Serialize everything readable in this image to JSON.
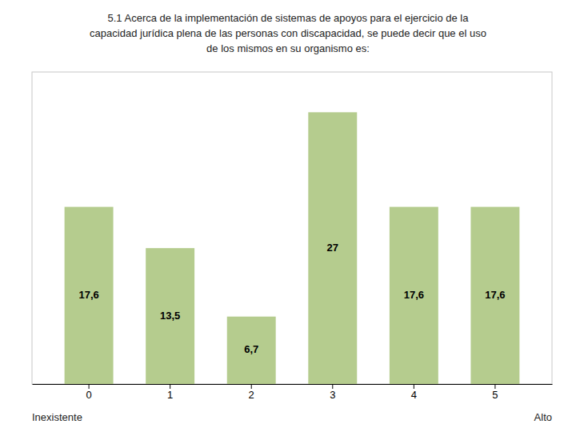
{
  "chart_data": {
    "type": "bar",
    "title": "5.1 Acerca de la implementación de sistemas de apoyos para el ejercicio de la\ncapacidad jurídica plena de las personas con discapacidad, se puede decir que el uso\nde los mismos en su organismo es:",
    "categories": [
      "0",
      "1",
      "2",
      "3",
      "4",
      "5"
    ],
    "values": [
      17.6,
      13.5,
      6.7,
      27.0,
      17.6,
      17.6
    ],
    "value_labels": [
      "17,6",
      "13,5",
      "6,7",
      "27",
      "17,6",
      "17,6"
    ],
    "data_labels": true,
    "color": "#b5cc8e",
    "ylim": [
      0,
      31
    ],
    "tick_labels": "x",
    "grid": false,
    "annotations": [
      "Inexistente",
      "Alto"
    ]
  }
}
